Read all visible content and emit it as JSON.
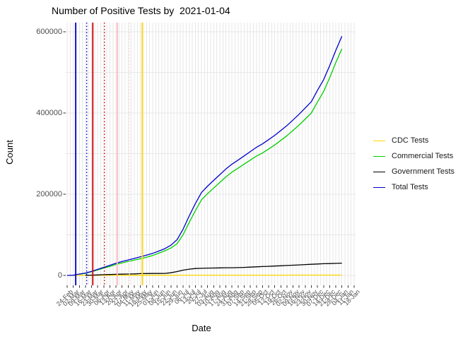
{
  "title": "Number of Positive Tests by  2021-01-04",
  "axes": {
    "x_label": "Date",
    "y_label": "Count"
  },
  "chart_data": {
    "type": "line",
    "title": "Number of Positive Tests by  2021-01-04",
    "xlabel": "Date",
    "ylabel": "Count",
    "grid": true,
    "legend_position": "right",
    "ylim": [
      -25000,
      620000
    ],
    "y_ticks": [
      0,
      200000,
      400000,
      600000
    ],
    "y_tick_labels": [
      "0",
      "200000",
      "400000",
      "600000"
    ],
    "y_minor_ticks": [
      100000,
      300000,
      500000
    ],
    "x_tick_labels": [
      "24-Feb",
      "02-Mar",
      "09-Mar",
      "16-Mar",
      "23-Mar",
      "30-Mar",
      "06-Apr",
      "13-Apr",
      "20-Apr",
      "27-Apr",
      "04-May",
      "11-May",
      "18-May",
      "25-May",
      "01-Jun",
      "08-Jun",
      "15-Jun",
      "22-Jun",
      "29-Jun",
      "06-Jul",
      "13-Jul",
      "20-Jul",
      "27-Jul",
      "03-Aug",
      "10-Aug",
      "17-Aug",
      "24-Aug",
      "31-Aug",
      "07-Sep",
      "14-Sep",
      "21-Sep",
      "28-Sep",
      "05-Oct",
      "12-Oct",
      "19-Oct",
      "26-Oct",
      "02-Nov",
      "09-Nov",
      "16-Nov",
      "23-Nov",
      "30-Nov",
      "07-Dec",
      "14-Dec",
      "21-Dec",
      "28-Dec",
      "04-Jan",
      "11-Jan",
      "18-Jan"
    ],
    "series": [
      {
        "name": "CDC Tests",
        "color": "#FFD700",
        "values": [
          null,
          0,
          150,
          250,
          350,
          400,
          450,
          480,
          500,
          510,
          520,
          530,
          540,
          550,
          560,
          570,
          580,
          590,
          600,
          610,
          620,
          630,
          640,
          650,
          660,
          670,
          680,
          690,
          700,
          710,
          720,
          730,
          740,
          750,
          760,
          770,
          780,
          790,
          800,
          805,
          810,
          815,
          820,
          825,
          830,
          835
        ]
      },
      {
        "name": "Commercial Tests",
        "color": "#00CE00",
        "values": [
          null,
          null,
          2800,
          5300,
          9200,
          13700,
          18000,
          22300,
          27200,
          31000,
          34200,
          37800,
          41000,
          44800,
          49300,
          54700,
          60700,
          67500,
          78000,
          100500,
          131000,
          159500,
          186000,
          201500,
          215200,
          228900,
          242600,
          254500,
          264200,
          274200,
          284000,
          293800,
          301600,
          311500,
          321300,
          332700,
          344000,
          357300,
          370500,
          385200,
          400000,
          427300,
          452700,
          486700,
          524300,
          558000
        ]
      },
      {
        "name": "Government Tests",
        "color": "#000000",
        "values": [
          null,
          null,
          null,
          300,
          700,
          1300,
          1900,
          2300,
          2700,
          3200,
          3500,
          3900,
          4500,
          4700,
          4800,
          4900,
          5000,
          6600,
          9500,
          13000,
          15500,
          17000,
          17500,
          18000,
          18300,
          18600,
          18900,
          19000,
          19300,
          19800,
          20500,
          21200,
          21900,
          22500,
          23200,
          23800,
          24500,
          25200,
          26000,
          26800,
          27500,
          28200,
          28800,
          29300,
          29700,
          30200
        ]
      },
      {
        "name": "Total Tests",
        "color": "#0000CD",
        "values": [
          0,
          500,
          3500,
          6000,
          10000,
          15000,
          20000,
          25000,
          30000,
          34500,
          38000,
          42000,
          46000,
          50000,
          54500,
          60000,
          66000,
          74500,
          88000,
          114000,
          147000,
          177000,
          204000,
          220000,
          234000,
          248000,
          262000,
          274000,
          284000,
          294500,
          305000,
          315500,
          324000,
          334500,
          345000,
          357000,
          369000,
          383000,
          397000,
          412500,
          428000,
          456000,
          482000,
          516500,
          554500,
          589000
        ]
      }
    ],
    "vlines": [
      {
        "label": "blue-solid",
        "date": "04-Mar",
        "x_index": 1.4,
        "color": "#0000CD",
        "style": "solid"
      },
      {
        "label": "blue-dotted",
        "date": "18-Mar",
        "x_index": 3.2,
        "color": "#0000CD",
        "style": "dotted"
      },
      {
        "label": "red-solid",
        "date": "24-Mar",
        "x_index": 4.2,
        "color": "#CC0000",
        "style": "solid"
      },
      {
        "label": "red-dotted",
        "date": "08-Apr",
        "x_index": 6.1,
        "color": "#CC0000",
        "style": "dotted"
      },
      {
        "label": "pink-solid",
        "date": "22-Apr",
        "x_index": 8.2,
        "color": "#FFB6C1",
        "style": "solid"
      },
      {
        "label": "pink-dotted",
        "date": "06-May",
        "x_index": 10.2,
        "color": "#FFCCD5",
        "style": "dotted"
      },
      {
        "label": "gold-solid",
        "date": "20-May",
        "x_index": 12.3,
        "color": "#FFD700",
        "style": "solid"
      }
    ]
  },
  "colors": {
    "grid": "#E7E7E7",
    "tick": "#333333",
    "tick_label": "#4d4d4d"
  }
}
